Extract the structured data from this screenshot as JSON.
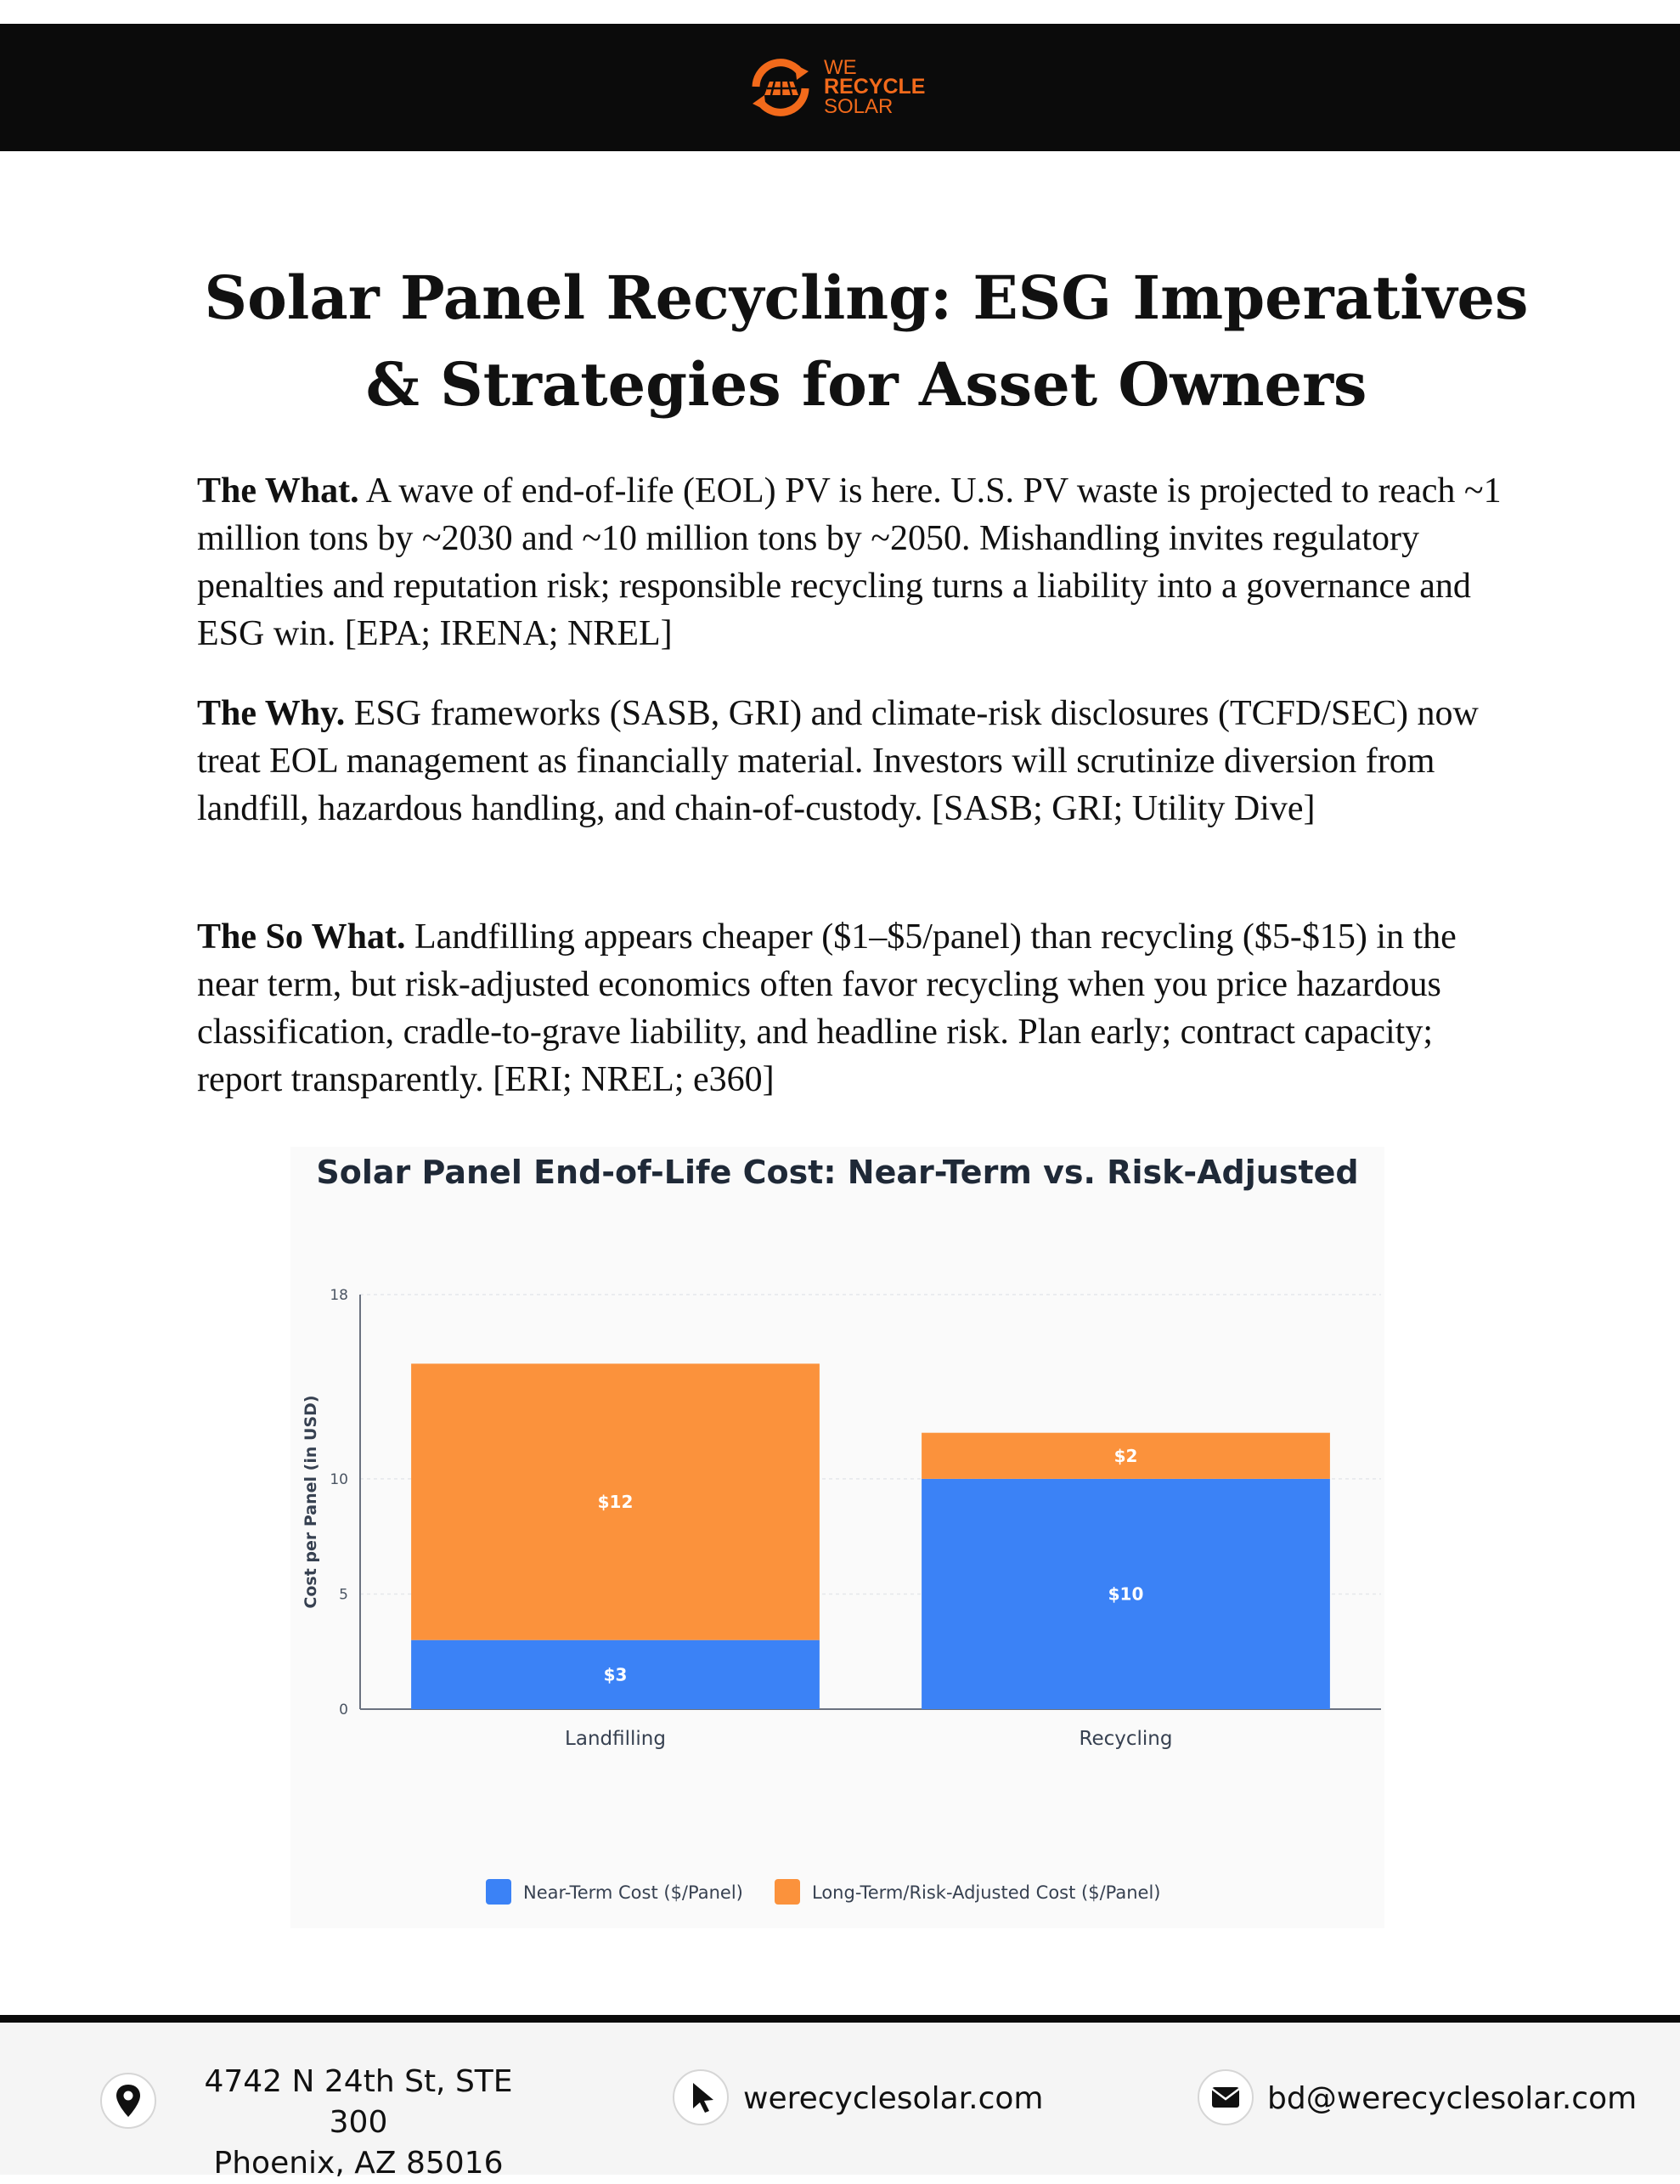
{
  "header": {
    "logo": {
      "line1": "WE",
      "line2": "RECYCLE",
      "line3": "SOLAR"
    },
    "brand_color": "#f26a1b"
  },
  "title": "Solar Panel Recycling: ESG Imperatives & Strategies for Asset Owners",
  "sections": [
    {
      "heading": "The What.",
      "body": " A wave of end-of-life (EOL) PV is here. U.S. PV waste is projected to reach ~1 million tons by ~2030 and ~10 million tons by ~2050. Mishandling invites regulatory penalties and reputation risk; responsible recycling turns a liability into a governance and ESG win. [EPA; IRENA; NREL]"
    },
    {
      "heading": "The Why.",
      "body": " ESG frameworks (SASB, GRI) and climate-risk disclosures (TCFD/SEC) now treat EOL management as financially material. Investors will scrutinize diversion from landfill, hazardous handling, and chain-of-custody. [SASB; GRI; Utility Dive]"
    },
    {
      "heading": "The So What.",
      "body": " Landfilling appears cheaper ($1–$5/panel) than recycling ($5-$15) in the near term, but risk-adjusted economics often favor recycling when you price hazardous classification, cradle-to-grave liability, and headline risk. Plan early; contract capacity; report transparently. [ERI; NREL; e360]"
    }
  ],
  "chart_data": {
    "type": "bar",
    "stacked": true,
    "title": "Solar Panel End-of-Life Cost: Near-Term vs. Risk-Adjusted",
    "xlabel": "",
    "ylabel": "Cost per Panel (in USD)",
    "categories": [
      "Landfilling",
      "Recycling"
    ],
    "series": [
      {
        "name": "Near-Term Cost ($/Panel)",
        "values": [
          3,
          10
        ],
        "labels": [
          "$3",
          "$10"
        ],
        "color": "#3b82f6"
      },
      {
        "name": "Long-Term/Risk-Adjusted Cost ($/Panel)",
        "values": [
          12,
          2
        ],
        "labels": [
          "$12",
          "$2"
        ],
        "color": "#fb923c"
      }
    ],
    "yticks": [
      0,
      5,
      10,
      18
    ],
    "ylim": [
      0,
      18
    ],
    "grid": true,
    "legend": "bottom"
  },
  "footer": {
    "address_line1": "4742 N 24th St, STE 300",
    "address_line2": "Phoenix, AZ 85016",
    "website": "werecyclesolar.com",
    "email": "bd@werecyclesolar.com",
    "icons": [
      "location-pin-icon",
      "cursor-arrow-icon",
      "envelope-icon"
    ]
  }
}
